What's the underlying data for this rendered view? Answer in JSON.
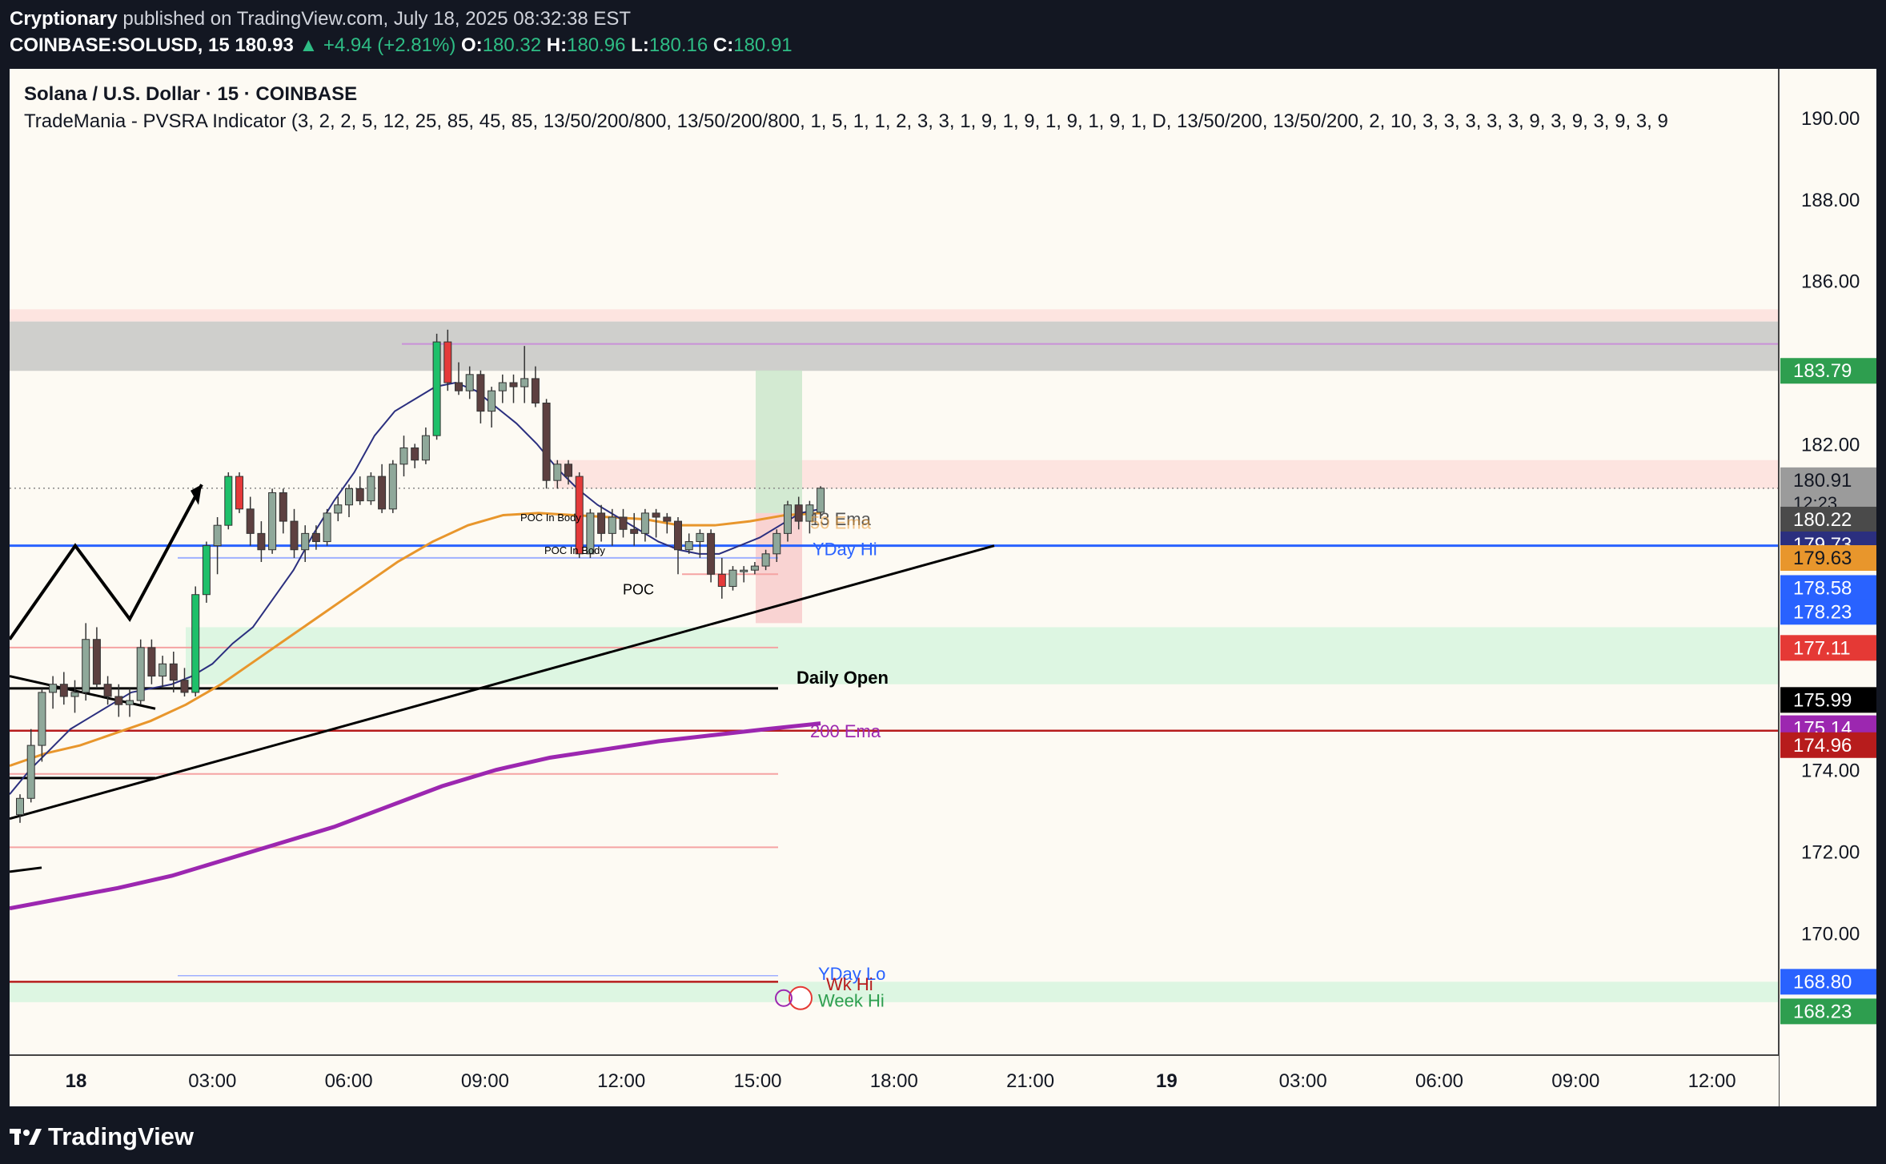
{
  "header": {
    "publisher": "Cryptionary",
    "published_text": "published on TradingView.com, July 18, 2025 08:32:38 EST",
    "symbol": "COINBASE:SOLUSD, 15",
    "last": "180.93",
    "change": "▲ +4.94 (+2.81%)",
    "o_label": "O:",
    "o_value": "180.32",
    "h_label": "H:",
    "h_value": "180.96",
    "l_label": "L:",
    "l_value": "180.16",
    "c_label": "C:",
    "c_value": "180.91"
  },
  "legend": {
    "title": "Solana / U.S. Dollar · 15 · COINBASE",
    "indicator": "TradeMania - PVSRA Indicator (3, 2, 2, 5, 12, 25, 85, 45, 85, 13/50/200/800, 13/50/200/800, 1, 5, 1, 1, 2, 3, 3, 1, 9, 1, 9, 1, 9, 1, 9, 1, D, 13/50/200, 13/50/200, 2, 10, 3, 3, 3, 3, 3, 9, 3, 9, 3, 9, 3, 9"
  },
  "footer": {
    "logo": "TradingView",
    "logo_icon": "tradingview-logo-icon"
  },
  "colors": {
    "background": "#fdfaf3",
    "bull": "#8fa89a",
    "bear": "#5d4040",
    "bull_climax": "#1ec06a",
    "bear_climax": "#e43a3a",
    "ema13": "#2b2f7f",
    "ema50": "#e8962c",
    "ema200": "#9c27b0",
    "yday_hi": "#2962ff"
  },
  "chart_data": {
    "type": "candlestick",
    "title": "Solana / U.S. Dollar · 15 · COINBASE",
    "ylim": [
      167.0,
      191.2
    ],
    "y_ticks": [
      "190.00",
      "188.00",
      "186.00",
      "182.00",
      "174.00",
      "172.00",
      "170.00"
    ],
    "x_ticks": [
      "18",
      "03:00",
      "06:00",
      "09:00",
      "12:00",
      "15:00",
      "18:00",
      "21:00",
      "19",
      "03:00",
      "06:00",
      "09:00",
      "12:00"
    ],
    "x_tick_bold": [
      "18",
      "19"
    ],
    "candles": [
      {
        "o": 172.9,
        "h": 173.4,
        "l": 172.7,
        "c": 173.3,
        "t": "bull"
      },
      {
        "o": 173.3,
        "h": 175.0,
        "l": 173.2,
        "c": 174.6,
        "t": "bull"
      },
      {
        "o": 174.6,
        "h": 176.0,
        "l": 174.2,
        "c": 175.9,
        "t": "bull"
      },
      {
        "o": 175.9,
        "h": 176.3,
        "l": 175.5,
        "c": 176.1,
        "t": "bull"
      },
      {
        "o": 176.1,
        "h": 176.4,
        "l": 175.6,
        "c": 175.8,
        "t": "bear"
      },
      {
        "o": 175.8,
        "h": 176.2,
        "l": 175.4,
        "c": 175.9,
        "t": "bull"
      },
      {
        "o": 175.9,
        "h": 177.6,
        "l": 175.7,
        "c": 177.2,
        "t": "bull"
      },
      {
        "o": 177.2,
        "h": 177.5,
        "l": 176.0,
        "c": 176.1,
        "t": "bear"
      },
      {
        "o": 176.1,
        "h": 176.3,
        "l": 175.6,
        "c": 175.8,
        "t": "bear"
      },
      {
        "o": 175.8,
        "h": 176.1,
        "l": 175.3,
        "c": 175.6,
        "t": "bear"
      },
      {
        "o": 175.6,
        "h": 176.0,
        "l": 175.3,
        "c": 175.7,
        "t": "bull"
      },
      {
        "o": 175.7,
        "h": 177.2,
        "l": 175.6,
        "c": 177.0,
        "t": "bull"
      },
      {
        "o": 177.0,
        "h": 177.2,
        "l": 176.1,
        "c": 176.3,
        "t": "bear"
      },
      {
        "o": 176.3,
        "h": 176.8,
        "l": 176.0,
        "c": 176.6,
        "t": "bull"
      },
      {
        "o": 176.6,
        "h": 176.9,
        "l": 175.9,
        "c": 176.2,
        "t": "bear"
      },
      {
        "o": 176.2,
        "h": 176.5,
        "l": 175.8,
        "c": 175.9,
        "t": "bear"
      },
      {
        "o": 175.9,
        "h": 178.5,
        "l": 175.8,
        "c": 178.3,
        "t": "bull_climax"
      },
      {
        "o": 178.3,
        "h": 179.6,
        "l": 178.1,
        "c": 179.5,
        "t": "bull_climax"
      },
      {
        "o": 179.5,
        "h": 180.2,
        "l": 178.8,
        "c": 180.0,
        "t": "bull"
      },
      {
        "o": 180.0,
        "h": 181.3,
        "l": 179.9,
        "c": 181.2,
        "t": "bull_climax"
      },
      {
        "o": 181.2,
        "h": 181.3,
        "l": 180.3,
        "c": 180.4,
        "t": "bear_climax"
      },
      {
        "o": 180.4,
        "h": 180.7,
        "l": 179.5,
        "c": 179.8,
        "t": "bear"
      },
      {
        "o": 179.8,
        "h": 180.1,
        "l": 179.1,
        "c": 179.4,
        "t": "bear"
      },
      {
        "o": 179.4,
        "h": 180.9,
        "l": 179.3,
        "c": 180.8,
        "t": "bull"
      },
      {
        "o": 180.8,
        "h": 180.9,
        "l": 179.8,
        "c": 180.1,
        "t": "bear"
      },
      {
        "o": 180.1,
        "h": 180.4,
        "l": 179.2,
        "c": 179.4,
        "t": "bear"
      },
      {
        "o": 179.4,
        "h": 180.0,
        "l": 179.1,
        "c": 179.8,
        "t": "bull"
      },
      {
        "o": 179.8,
        "h": 180.0,
        "l": 179.4,
        "c": 179.6,
        "t": "bear"
      },
      {
        "o": 179.6,
        "h": 180.4,
        "l": 179.5,
        "c": 180.3,
        "t": "bull"
      },
      {
        "o": 180.3,
        "h": 180.7,
        "l": 180.1,
        "c": 180.5,
        "t": "bull"
      },
      {
        "o": 180.5,
        "h": 181.0,
        "l": 180.2,
        "c": 180.9,
        "t": "bull"
      },
      {
        "o": 180.9,
        "h": 181.2,
        "l": 180.5,
        "c": 180.6,
        "t": "bear"
      },
      {
        "o": 180.6,
        "h": 181.3,
        "l": 180.5,
        "c": 181.2,
        "t": "bull"
      },
      {
        "o": 181.2,
        "h": 181.5,
        "l": 180.3,
        "c": 180.4,
        "t": "bear"
      },
      {
        "o": 180.4,
        "h": 181.6,
        "l": 180.3,
        "c": 181.5,
        "t": "bull"
      },
      {
        "o": 181.5,
        "h": 182.2,
        "l": 181.2,
        "c": 181.9,
        "t": "bull"
      },
      {
        "o": 181.9,
        "h": 182.0,
        "l": 181.4,
        "c": 181.6,
        "t": "bear"
      },
      {
        "o": 181.6,
        "h": 182.4,
        "l": 181.5,
        "c": 182.2,
        "t": "bull"
      },
      {
        "o": 182.2,
        "h": 184.7,
        "l": 182.1,
        "c": 184.5,
        "t": "bull_climax"
      },
      {
        "o": 184.5,
        "h": 184.8,
        "l": 183.3,
        "c": 183.5,
        "t": "bear_climax"
      },
      {
        "o": 183.5,
        "h": 184.0,
        "l": 183.2,
        "c": 183.3,
        "t": "bear"
      },
      {
        "o": 183.3,
        "h": 183.9,
        "l": 183.1,
        "c": 183.7,
        "t": "bull"
      },
      {
        "o": 183.7,
        "h": 183.8,
        "l": 182.5,
        "c": 182.8,
        "t": "bear"
      },
      {
        "o": 182.8,
        "h": 183.4,
        "l": 182.4,
        "c": 183.3,
        "t": "bull"
      },
      {
        "o": 183.3,
        "h": 183.7,
        "l": 183.0,
        "c": 183.5,
        "t": "bull"
      },
      {
        "o": 183.5,
        "h": 183.7,
        "l": 183.0,
        "c": 183.4,
        "t": "bear"
      },
      {
        "o": 183.4,
        "h": 184.4,
        "l": 183.0,
        "c": 183.6,
        "t": "bull"
      },
      {
        "o": 183.6,
        "h": 183.9,
        "l": 182.9,
        "c": 183.0,
        "t": "bear"
      },
      {
        "o": 183.0,
        "h": 183.1,
        "l": 180.9,
        "c": 181.1,
        "t": "bear"
      },
      {
        "o": 181.1,
        "h": 181.6,
        "l": 180.9,
        "c": 181.5,
        "t": "bull"
      },
      {
        "o": 181.5,
        "h": 181.6,
        "l": 181.0,
        "c": 181.2,
        "t": "bear"
      },
      {
        "o": 181.2,
        "h": 181.3,
        "l": 179.2,
        "c": 179.3,
        "t": "bear_climax"
      },
      {
        "o": 179.3,
        "h": 180.4,
        "l": 179.2,
        "c": 180.3,
        "t": "bull"
      },
      {
        "o": 180.3,
        "h": 180.5,
        "l": 179.6,
        "c": 179.8,
        "t": "bear"
      },
      {
        "o": 179.8,
        "h": 180.4,
        "l": 179.5,
        "c": 180.2,
        "t": "bull"
      },
      {
        "o": 180.2,
        "h": 180.4,
        "l": 179.7,
        "c": 179.9,
        "t": "bear"
      },
      {
        "o": 179.9,
        "h": 180.3,
        "l": 179.5,
        "c": 179.8,
        "t": "bear"
      },
      {
        "o": 179.8,
        "h": 180.4,
        "l": 179.6,
        "c": 180.3,
        "t": "bull"
      },
      {
        "o": 180.3,
        "h": 180.4,
        "l": 179.7,
        "c": 180.2,
        "t": "bear"
      },
      {
        "o": 180.2,
        "h": 180.3,
        "l": 179.8,
        "c": 180.1,
        "t": "bear"
      },
      {
        "o": 180.1,
        "h": 180.2,
        "l": 178.8,
        "c": 179.4,
        "t": "bear"
      },
      {
        "o": 179.4,
        "h": 179.8,
        "l": 179.3,
        "c": 179.6,
        "t": "bull"
      },
      {
        "o": 179.6,
        "h": 179.9,
        "l": 179.2,
        "c": 179.8,
        "t": "bull"
      },
      {
        "o": 179.8,
        "h": 179.9,
        "l": 178.6,
        "c": 178.8,
        "t": "bear"
      },
      {
        "o": 178.8,
        "h": 179.2,
        "l": 178.2,
        "c": 178.5,
        "t": "bear_climax"
      },
      {
        "o": 178.5,
        "h": 179.0,
        "l": 178.4,
        "c": 178.9,
        "t": "bull"
      },
      {
        "o": 178.9,
        "h": 179.0,
        "l": 178.6,
        "c": 178.9,
        "t": "bull"
      },
      {
        "o": 178.9,
        "h": 179.1,
        "l": 178.8,
        "c": 179.0,
        "t": "bull"
      },
      {
        "o": 179.0,
        "h": 179.4,
        "l": 178.9,
        "c": 179.3,
        "t": "bull"
      },
      {
        "o": 179.3,
        "h": 179.9,
        "l": 179.1,
        "c": 179.8,
        "t": "bull"
      },
      {
        "o": 179.8,
        "h": 180.6,
        "l": 179.6,
        "c": 180.5,
        "t": "bull"
      },
      {
        "o": 180.5,
        "h": 180.7,
        "l": 179.9,
        "c": 180.1,
        "t": "bear"
      },
      {
        "o": 180.1,
        "h": 180.6,
        "l": 179.8,
        "c": 180.5,
        "t": "bull"
      },
      {
        "o": 180.32,
        "h": 180.96,
        "l": 180.16,
        "c": 180.91,
        "t": "bull"
      }
    ],
    "ema13": [
      173.4,
      174.0,
      174.5,
      175.0,
      175.3,
      175.6,
      175.9,
      176.0,
      176.1,
      176.3,
      176.6,
      177.1,
      177.5,
      178.2,
      178.9,
      179.8,
      180.6,
      181.3,
      182.2,
      182.8,
      183.1,
      183.4,
      183.5,
      183.3,
      182.9,
      182.5,
      182.0,
      181.4,
      180.9,
      180.5,
      180.2,
      179.9,
      179.6,
      179.4,
      179.3,
      179.3,
      179.5,
      179.7,
      180.0,
      180.3,
      180.4
    ],
    "ema50": [
      174.1,
      174.4,
      174.6,
      174.9,
      175.2,
      175.6,
      176.1,
      176.7,
      177.3,
      177.9,
      178.5,
      179.1,
      179.6,
      180.0,
      180.25,
      180.3,
      180.25,
      180.2,
      180.15,
      180.0,
      180.0,
      180.1,
      180.25,
      180.3
    ],
    "ema200": [
      170.6,
      170.85,
      171.1,
      171.4,
      171.8,
      172.2,
      172.6,
      173.1,
      173.6,
      174.0,
      174.3,
      174.5,
      174.7,
      174.85,
      175.0,
      175.14
    ],
    "levels": [
      {
        "value": 180.91,
        "label": "180.91",
        "sub": "12:23",
        "bg": "#9b9b9b",
        "fg": "#131722"
      },
      {
        "value": 180.22,
        "label": "180.22",
        "bg": "#4a4a4a",
        "fg": "#ffffff"
      },
      {
        "value": 179.73,
        "label": "179.73",
        "bg": "#2b2f7f",
        "fg": "#ffffff"
      },
      {
        "value": 179.63,
        "label": "179.63",
        "bg": "#e8962c",
        "fg": "#131722"
      },
      {
        "value": 178.58,
        "label": "178.58",
        "bg": "#2962ff",
        "fg": "#ffffff"
      },
      {
        "value": 178.23,
        "label": "178.23",
        "bg": "#2962ff",
        "fg": "#ffffff"
      },
      {
        "value": 177.11,
        "label": "177.11",
        "bg": "#e53935",
        "fg": "#ffffff"
      },
      {
        "value": 175.99,
        "label": "175.99",
        "bg": "#000000",
        "fg": "#ffffff"
      },
      {
        "value": 175.14,
        "label": "175.14",
        "bg": "#9c27b0",
        "fg": "#ffffff"
      },
      {
        "value": 174.96,
        "label": "174.96",
        "bg": "#b71c1c",
        "fg": "#ffffff"
      },
      {
        "value": 183.79,
        "label": "183.79",
        "bg": "#2e9e4f",
        "fg": "#ffffff"
      },
      {
        "value": 168.8,
        "label": "168.80",
        "bg": "#2962ff",
        "fg": "#ffffff"
      },
      {
        "value": 168.23,
        "label": "168.23",
        "bg": "#2e9e4f",
        "fg": "#ffffff"
      }
    ],
    "annotations": {
      "ema13_label": "13 Ema",
      "ema50_label": "50 Ema",
      "ema200_label": "200 Ema",
      "yday_hi": "YDay Hi",
      "yday_lo": "YDay Lo",
      "wk_hi": "Wk Hi",
      "week_hi": "Week Hi",
      "daily_open": "Daily Open",
      "poc": "POC",
      "poc_in_body_1": "POC In Body",
      "poc_in_body_2": "POC In Body"
    },
    "zones": {
      "grey_supply": [
        183.79,
        185.0
      ],
      "pink_top": [
        185.0,
        185.3
      ],
      "pink_mid": [
        180.9,
        181.6
      ],
      "green_demand": [
        176.1,
        177.5
      ],
      "long_position": {
        "entry": 180.3,
        "target": 183.8,
        "stop": 177.6
      }
    },
    "ydayhi_value": 179.5,
    "daily_open_value": 176.0,
    "ema200_line_value": 174.96,
    "pink_level_values": [
      177.0,
      173.9,
      172.1
    ]
  }
}
